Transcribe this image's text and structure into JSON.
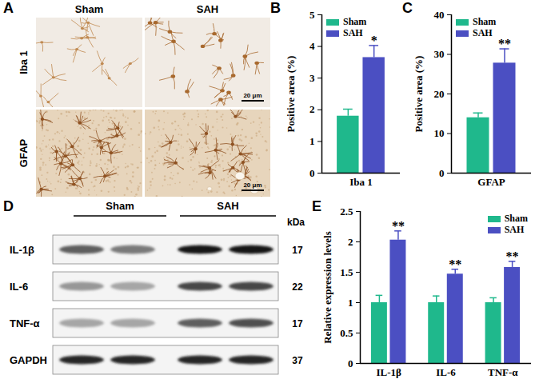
{
  "panel_labels": [
    "A",
    "B",
    "C",
    "D",
    "E"
  ],
  "micrographs": {
    "columns": [
      "Sham",
      "SAH"
    ],
    "rows": [
      "Iba 1",
      "GFAP"
    ],
    "scale_bar": "20 μm"
  },
  "western_blot": {
    "groups": [
      "Sham",
      "SAH"
    ],
    "unit": "kDa",
    "bands": [
      {
        "name": "IL-1β",
        "kda": 17,
        "darkness": [
          0.7,
          0.6,
          0.92,
          0.92
        ]
      },
      {
        "name": "IL-6",
        "kda": 22,
        "darkness": [
          0.5,
          0.45,
          0.78,
          0.78
        ]
      },
      {
        "name": "TNF-α",
        "kda": 17,
        "darkness": [
          0.45,
          0.45,
          0.7,
          0.75
        ]
      },
      {
        "name": "GAPDH",
        "kda": 37,
        "darkness": [
          0.88,
          0.88,
          0.88,
          0.88
        ]
      }
    ]
  },
  "chart_data": [
    {
      "type": "bar",
      "y_label": "Positive area (%)",
      "categories": [
        "Iba 1"
      ],
      "series": [
        {
          "name": "Sham",
          "color": "#1fb88c",
          "values": [
            1.8
          ],
          "errors": [
            0.22
          ]
        },
        {
          "name": "SAH",
          "color": "#4b4fc2",
          "values": [
            3.65
          ],
          "errors": [
            0.38
          ],
          "annotations": [
            "*"
          ]
        }
      ],
      "ylim": [
        0,
        5
      ],
      "yticks": [
        0,
        1,
        2,
        3,
        4,
        5
      ],
      "legend": "top-left"
    },
    {
      "type": "bar",
      "y_label": "Positive area (%)",
      "categories": [
        "GFAP"
      ],
      "series": [
        {
          "name": "Sham",
          "color": "#1fb88c",
          "values": [
            14
          ],
          "errors": [
            1.2
          ]
        },
        {
          "name": "SAH",
          "color": "#4b4fc2",
          "values": [
            27.8
          ],
          "errors": [
            3.6
          ],
          "annotations": [
            "**"
          ]
        }
      ],
      "ylim": [
        0,
        40
      ],
      "yticks": [
        0,
        10,
        20,
        30,
        40
      ],
      "legend": "top-left"
    },
    {
      "type": "bar",
      "y_label": "Relative expression levels",
      "categories": [
        "IL-1β",
        "IL-6",
        "TNF-α"
      ],
      "series": [
        {
          "name": "Sham",
          "color": "#1fb88c",
          "values": [
            1.0,
            1.0,
            1.0
          ],
          "errors": [
            0.12,
            0.11,
            0.08
          ]
        },
        {
          "name": "SAH",
          "color": "#4b4fc2",
          "values": [
            2.03,
            1.47,
            1.58
          ],
          "errors": [
            0.15,
            0.08,
            0.1
          ],
          "annotations": [
            "**",
            "**",
            "**"
          ]
        }
      ],
      "ylim": [
        0,
        2.5
      ],
      "yticks": [
        0,
        0.5,
        1,
        1.5,
        2,
        2.5
      ],
      "legend": "top-right"
    }
  ]
}
